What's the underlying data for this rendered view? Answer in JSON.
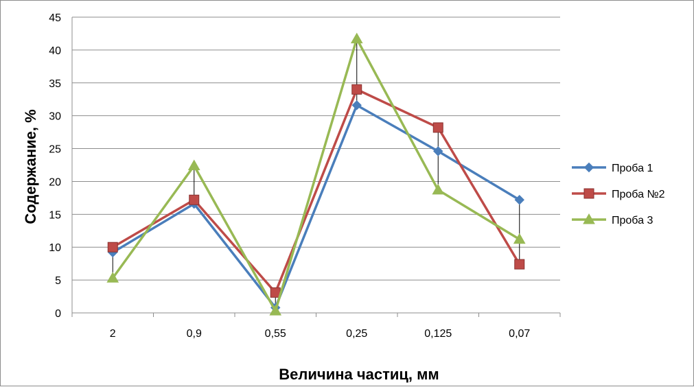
{
  "chart_data": {
    "type": "line",
    "categories": [
      "2",
      "0,9",
      "0,55",
      "0,25",
      "0,125",
      "0,07"
    ],
    "xlabel": "Величина частиц, мм",
    "ylabel": "Содержание, %",
    "ylim": [
      0,
      45
    ],
    "yticks": [
      0,
      5,
      10,
      15,
      20,
      25,
      30,
      35,
      40,
      45
    ],
    "grid": true,
    "legend_position": "right",
    "drop_lines": true,
    "series": [
      {
        "name": "Проба 1",
        "values": [
          9.2,
          16.6,
          0.8,
          31.6,
          24.6,
          17.2
        ],
        "color": "#4a7ebb",
        "marker": "diamond"
      },
      {
        "name": "Проба №2",
        "values": [
          10.0,
          17.2,
          3.1,
          34.0,
          28.2,
          7.4
        ],
        "color": "#be4b48",
        "marker": "square"
      },
      {
        "name": "Проба 3",
        "values": [
          5.3,
          22.4,
          0.3,
          41.7,
          18.7,
          11.2
        ],
        "color": "#98b954",
        "marker": "triangle"
      }
    ]
  }
}
